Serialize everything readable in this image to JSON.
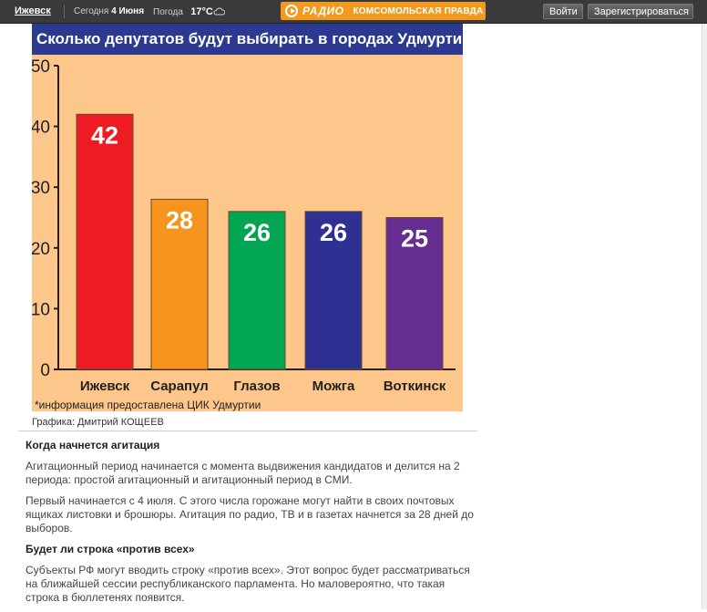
{
  "topbar": {
    "city": "Ижевск",
    "today_label": "Сегодня",
    "today_date": "4 Июня",
    "weather_label": "Погода",
    "temperature": "17°C",
    "weather_icon": "cloud-icon",
    "radio_word": "РАДИО",
    "radio_paper": "КОМСОМОЛЬСКАЯ ПРАВДА",
    "login_label": "Войти",
    "register_label": "Зарегистрироваться",
    "accent_color": "#f39a1e"
  },
  "chart_data": {
    "type": "bar",
    "title": "Сколько депутатов будут выбирать в городах Удмуртии",
    "categories": [
      "Ижевск",
      "Сарапул",
      "Глазов",
      "Можга",
      "Воткинск"
    ],
    "values": [
      42,
      28,
      26,
      26,
      25
    ],
    "data_labels": [
      "42",
      "28",
      "26",
      "26",
      "25"
    ],
    "colors": [
      "#ed1c24",
      "#f7941d",
      "#00a651",
      "#2e3192",
      "#662d91"
    ],
    "ylim": [
      0,
      50
    ],
    "yticks": [
      "0",
      "10",
      "20",
      "30",
      "40",
      "50"
    ],
    "footnote": "*информация предоставлена ЦИК Удмуртии",
    "background": "#fdc68b",
    "grid": false
  },
  "article": {
    "credit": "Графика: Дмитрий КОЩЕЕВ",
    "h1": "Когда начнется агитация",
    "p1": "Агитационный период начинается с момента выдвижения кандидатов и делится на 2 периода: простой агитационный и агитационный период в СМИ.",
    "p2": "Первый начинается с 4 июля. С этого числа горожане могут найти в своих почтовых ящиках листовки и брошюры. Агитация по радио, ТВ и в газетах начнется за 28 дней до выборов.",
    "h2": "Будет ли строка «против всех»",
    "p3": "Субъекты РФ могут вводить строку «против всех». Этот вопрос будет рассматриваться на ближайшей сессии республиканского парламента. Но маловероятно, что такая строка в бюллетенях появится."
  }
}
